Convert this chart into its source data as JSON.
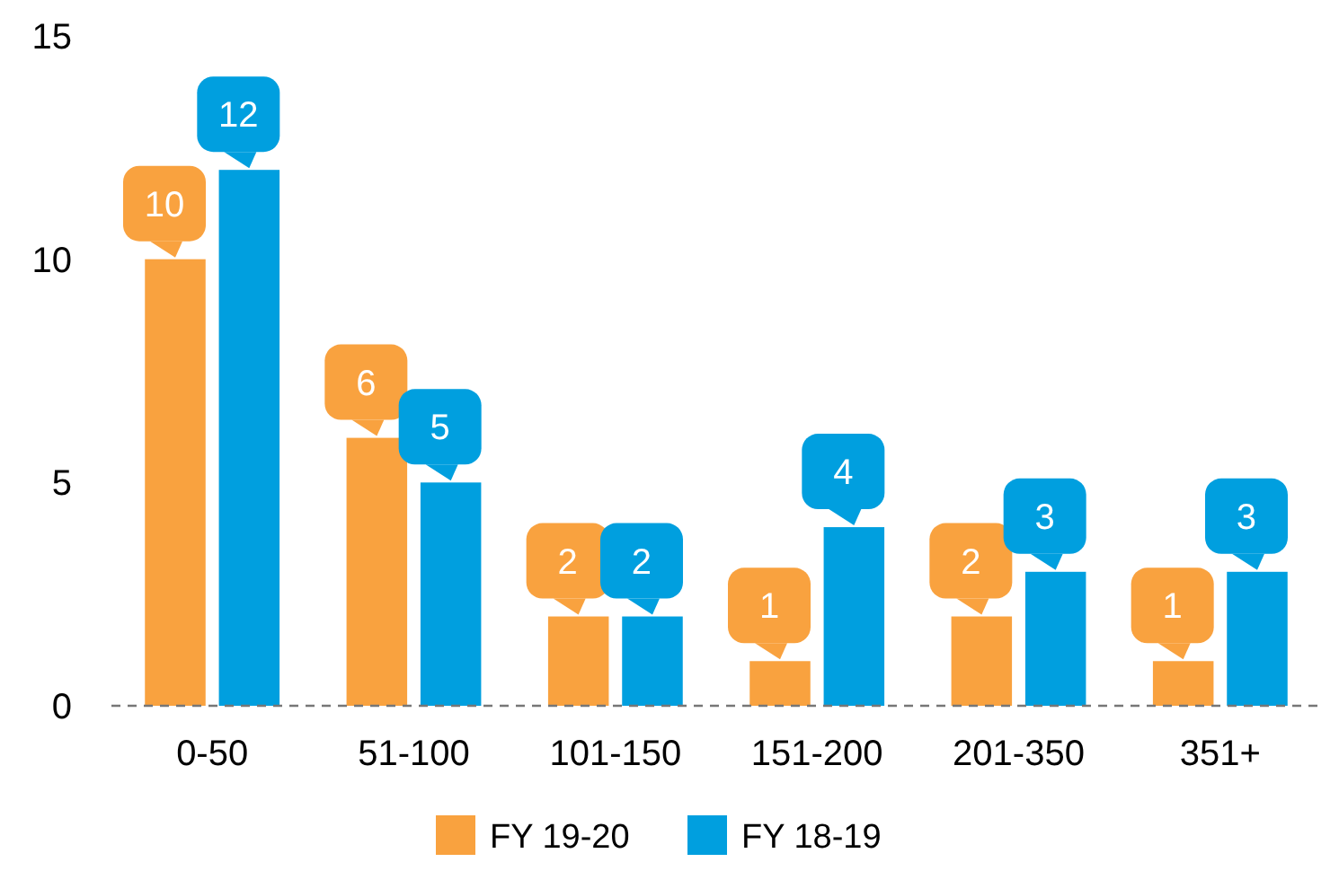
{
  "chart_data": {
    "type": "bar",
    "categories": [
      "0-50",
      "51-100",
      "101-150",
      "151-200",
      "201-350",
      "351+"
    ],
    "series": [
      {
        "name": "FY 19-20",
        "color": "#f9a23f",
        "values": [
          10,
          6,
          2,
          1,
          2,
          1
        ]
      },
      {
        "name": "FY 18-19",
        "color": "#009fdf",
        "values": [
          12,
          5,
          2,
          4,
          3,
          3
        ]
      }
    ],
    "ylim": [
      0,
      15
    ],
    "yticks": [
      0,
      5,
      10,
      15
    ],
    "grid": false,
    "legend": "bottom",
    "data_labels": true
  }
}
